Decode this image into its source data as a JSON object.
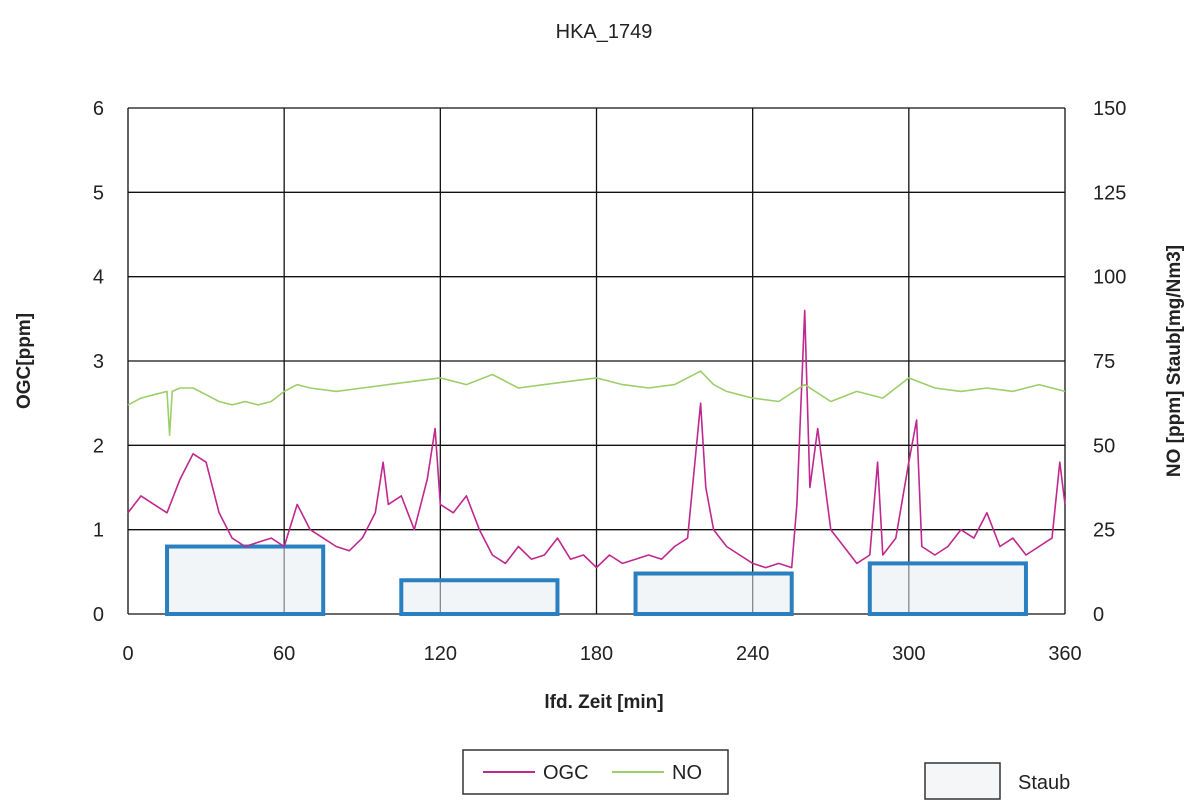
{
  "chart_data": {
    "type": "line",
    "title": "HKA_1749",
    "xlabel": "lfd. Zeit [min]",
    "ylabel_left": "OGC[ppm]",
    "ylabel_right": "NO [ppm] Staub[mg/Nm3]",
    "xlim": [
      0,
      360
    ],
    "ylim_left": [
      0,
      6
    ],
    "ylim_right": [
      0,
      150
    ],
    "x_ticks": [
      "0",
      "60",
      "120",
      "180",
      "240",
      "300",
      "360"
    ],
    "y_left_ticks": [
      "0",
      "1",
      "2",
      "3",
      "4",
      "5",
      "6"
    ],
    "y_right_ticks": [
      "0",
      "25",
      "50",
      "75",
      "100",
      "125",
      "150"
    ],
    "grid": true,
    "legend": "bottom",
    "series": [
      {
        "name": "OGC",
        "axis": "left",
        "color": "#c0288f",
        "x": [
          0,
          5,
          10,
          15,
          20,
          25,
          30,
          35,
          40,
          45,
          50,
          55,
          60,
          65,
          70,
          75,
          80,
          85,
          90,
          95,
          98,
          100,
          105,
          110,
          115,
          118,
          120,
          125,
          130,
          135,
          140,
          145,
          150,
          155,
          160,
          165,
          170,
          175,
          180,
          185,
          190,
          195,
          200,
          205,
          210,
          215,
          220,
          222,
          225,
          230,
          235,
          240,
          245,
          250,
          255,
          257,
          260,
          262,
          265,
          270,
          275,
          280,
          285,
          288,
          290,
          295,
          300,
          303,
          305,
          310,
          315,
          320,
          325,
          330,
          335,
          340,
          345,
          350,
          355,
          358,
          360
        ],
        "values": [
          1.2,
          1.4,
          1.3,
          1.2,
          1.6,
          1.9,
          1.8,
          1.2,
          0.9,
          0.8,
          0.85,
          0.9,
          0.8,
          1.3,
          1.0,
          0.9,
          0.8,
          0.75,
          0.9,
          1.2,
          1.8,
          1.3,
          1.4,
          1.0,
          1.6,
          2.2,
          1.3,
          1.2,
          1.4,
          1.0,
          0.7,
          0.6,
          0.8,
          0.65,
          0.7,
          0.9,
          0.65,
          0.7,
          0.55,
          0.7,
          0.6,
          0.65,
          0.7,
          0.65,
          0.8,
          0.9,
          2.5,
          1.5,
          1.0,
          0.8,
          0.7,
          0.6,
          0.55,
          0.6,
          0.55,
          1.3,
          3.6,
          1.5,
          2.2,
          1.0,
          0.8,
          0.6,
          0.7,
          1.8,
          0.7,
          0.9,
          1.8,
          2.3,
          0.8,
          0.7,
          0.8,
          1.0,
          0.9,
          1.2,
          0.8,
          0.9,
          0.7,
          0.8,
          0.9,
          1.8,
          1.3
        ]
      },
      {
        "name": "NO",
        "axis": "right",
        "color": "#9ccf6a",
        "x": [
          0,
          5,
          10,
          15,
          16,
          17,
          20,
          25,
          30,
          35,
          40,
          45,
          50,
          55,
          60,
          65,
          70,
          80,
          90,
          100,
          110,
          120,
          130,
          140,
          150,
          160,
          170,
          180,
          190,
          200,
          210,
          220,
          225,
          230,
          240,
          250,
          260,
          270,
          280,
          290,
          300,
          310,
          320,
          330,
          340,
          350,
          360
        ],
        "values": [
          62,
          64,
          65,
          66,
          53,
          66,
          67,
          67,
          65,
          63,
          62,
          63,
          62,
          63,
          66,
          68,
          67,
          66,
          67,
          68,
          69,
          70,
          68,
          71,
          67,
          68,
          69,
          70,
          68,
          67,
          68,
          72,
          68,
          66,
          64,
          63,
          68,
          63,
          66,
          64,
          70,
          67,
          66,
          67,
          66,
          68,
          66
        ]
      }
    ],
    "bars": {
      "name": "Staub",
      "axis": "right",
      "color": "#2a7fc0",
      "items": [
        {
          "x_start": 15,
          "x_end": 75,
          "value": 20
        },
        {
          "x_start": 105,
          "x_end": 165,
          "value": 10
        },
        {
          "x_start": 195,
          "x_end": 255,
          "value": 12
        },
        {
          "x_start": 285,
          "x_end": 345,
          "value": 15
        }
      ]
    },
    "legend_entries": [
      "OGC",
      "NO"
    ],
    "legend_staub": "Staub"
  }
}
